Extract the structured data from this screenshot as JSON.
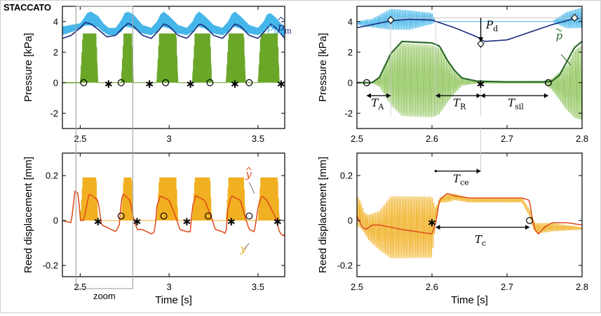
{
  "figure": {
    "heading": "STACCATO",
    "zoom_label": "zoom"
  },
  "colors": {
    "pressure_mouthpiece": "#45b6ea",
    "pressure_mean": "#1a2a7a",
    "pressure_reed": "#6aa729",
    "pressure_reed_smooth": "#2a6a2a",
    "reed_disp": "#f0b021",
    "reed_disp_smooth": "#e04a18",
    "zoom_box": "#a8a8a8",
    "annotation": "#777777"
  },
  "chart_data": [
    {
      "id": "left-top",
      "type": "line",
      "ylabel": "Pressure [kPa]",
      "xlim": [
        2.4,
        3.65
      ],
      "ylim": [
        -3,
        5
      ],
      "xticks": [
        "2.5",
        "3",
        "3.5"
      ],
      "xtick_values": [
        2.5,
        3.0,
        3.5
      ],
      "yticks": [
        "4",
        "2",
        "0",
        "-2"
      ],
      "ytick_values": [
        4,
        2,
        0,
        -2
      ],
      "series": [
        {
          "name": "p_m",
          "label_main": "p",
          "label_sub": "m",
          "kind": "oscillating",
          "envelope_t": [
            2.4,
            2.5,
            2.52,
            2.54,
            2.56,
            2.6,
            2.63,
            2.66,
            2.7,
            2.73,
            2.75,
            2.77,
            2.8,
            2.85,
            2.9,
            2.93,
            2.95,
            2.97,
            3.0,
            3.05,
            3.1,
            3.13,
            3.15,
            3.17,
            3.2,
            3.25,
            3.3,
            3.33,
            3.35,
            3.37,
            3.4,
            3.45,
            3.5,
            3.53,
            3.55,
            3.57,
            3.6,
            3.65
          ],
          "envelope_upper": [
            3.7,
            3.9,
            4.2,
            4.6,
            4.7,
            4.4,
            3.9,
            3.6,
            3.6,
            4.1,
            4.6,
            4.7,
            4.5,
            3.8,
            3.6,
            4.0,
            4.5,
            4.7,
            4.4,
            3.8,
            3.6,
            4.0,
            4.5,
            4.7,
            4.4,
            3.8,
            3.6,
            4.0,
            4.5,
            4.7,
            4.4,
            3.8,
            3.6,
            4.0,
            4.5,
            4.6,
            4.3,
            3.6
          ],
          "envelope_lower": [
            3.1,
            3.5,
            3.7,
            3.7,
            3.7,
            3.6,
            3.3,
            3.1,
            3.1,
            3.3,
            3.6,
            3.6,
            3.5,
            3.2,
            3.1,
            3.3,
            3.6,
            3.6,
            3.5,
            3.2,
            3.1,
            3.3,
            3.6,
            3.6,
            3.5,
            3.2,
            3.1,
            3.3,
            3.6,
            3.6,
            3.5,
            3.2,
            3.1,
            3.3,
            3.6,
            3.6,
            3.4,
            3.0
          ]
        },
        {
          "name": "p_m_hat",
          "label_main": "p",
          "label_sub": "m",
          "kind": "smooth",
          "t": [
            2.4,
            2.45,
            2.5,
            2.53,
            2.56,
            2.6,
            2.65,
            2.7,
            2.74,
            2.77,
            2.8,
            2.85,
            2.9,
            2.94,
            2.97,
            3.0,
            3.05,
            3.1,
            3.14,
            3.17,
            3.2,
            3.25,
            3.3,
            3.34,
            3.37,
            3.4,
            3.45,
            3.5,
            3.54,
            3.57,
            3.6,
            3.65
          ],
          "values": [
            2.9,
            3.1,
            3.6,
            3.95,
            3.85,
            3.5,
            3.0,
            3.1,
            3.6,
            3.9,
            3.7,
            3.1,
            2.9,
            3.4,
            3.85,
            3.7,
            3.1,
            2.9,
            3.4,
            3.85,
            3.7,
            3.1,
            2.9,
            3.4,
            3.85,
            3.7,
            3.1,
            2.9,
            3.4,
            3.85,
            3.6,
            2.9
          ]
        },
        {
          "name": "p",
          "label_main": "p",
          "label_sub": "",
          "kind": "oscillating",
          "bursts": [
            [
              2.5,
              2.6
            ],
            [
              2.73,
              2.8
            ],
            [
              2.93,
              3.05
            ],
            [
              3.13,
              3.24
            ],
            [
              3.32,
              3.43
            ],
            [
              3.5,
              3.62
            ]
          ],
          "amplitude_upper": 3.7,
          "amplitude_lower": -2.9
        },
        {
          "name": "p_mouthpiece_baseline",
          "kind": "smooth",
          "t": [
            2.4,
            2.5
          ],
          "values": [
            0,
            0
          ]
        }
      ],
      "markers": {
        "circles_t": [
          2.52,
          2.73,
          2.98,
          3.23,
          3.45
        ],
        "stars_t": [
          2.66,
          2.89,
          3.12,
          3.37,
          3.63
        ]
      },
      "annotations": [
        {
          "text_main": "p",
          "text_sub": "m"
        },
        {
          "text_main": "p",
          "text_sub": "m"
        },
        {
          "text_main": "p",
          "text_sub": ""
        }
      ]
    },
    {
      "id": "left-bottom",
      "type": "line",
      "xlabel": "Time [s]",
      "ylabel": "Reed displacement [mm]",
      "xlim": [
        2.4,
        3.65
      ],
      "ylim": [
        -0.25,
        0.3
      ],
      "xticks": [
        "2.5",
        "3",
        "3.5"
      ],
      "xtick_values": [
        2.5,
        3.0,
        3.5
      ],
      "yticks": [
        "0.2",
        "0",
        "-0.2"
      ],
      "ytick_values": [
        0.2,
        0,
        -0.2
      ],
      "series": [
        {
          "name": "y",
          "label_main": "y",
          "label_sub": "",
          "kind": "oscillating",
          "bursts": [
            [
              2.5,
              2.6
            ],
            [
              2.73,
              2.8
            ],
            [
              2.93,
              3.05
            ],
            [
              3.13,
              3.24
            ],
            [
              3.32,
              3.43
            ],
            [
              3.5,
              3.62
            ]
          ],
          "amplitude_upper": 0.14,
          "amplitude_lower": -0.22
        },
        {
          "name": "y_hat",
          "label_main": "y",
          "label_sub": "",
          "kind": "smooth",
          "t": [
            2.4,
            2.45,
            2.47,
            2.49,
            2.5,
            2.52,
            2.55,
            2.6,
            2.62,
            2.65,
            2.7,
            2.72,
            2.73,
            2.74,
            2.78,
            2.8,
            2.82,
            2.85,
            2.9,
            2.92,
            2.93,
            2.95,
            3.0,
            3.04,
            3.06,
            3.1,
            3.12,
            3.13,
            3.15,
            3.2,
            3.24,
            3.26,
            3.3,
            3.32,
            3.33,
            3.35,
            3.4,
            3.43,
            3.45,
            3.48,
            3.5,
            3.52,
            3.55,
            3.6,
            3.62,
            3.64,
            3.65
          ],
          "values": [
            0.0,
            -0.01,
            0.13,
            0.12,
            0.0,
            0.0,
            0.12,
            0.09,
            -0.02,
            -0.03,
            -0.05,
            -0.02,
            0.08,
            0.12,
            0.09,
            0.01,
            -0.04,
            -0.04,
            -0.06,
            -0.05,
            0.06,
            0.11,
            0.09,
            0.01,
            -0.04,
            -0.05,
            -0.05,
            0.06,
            0.11,
            0.09,
            0.01,
            -0.04,
            -0.05,
            -0.06,
            0.05,
            0.11,
            0.09,
            0.01,
            -0.04,
            -0.05,
            0.06,
            0.11,
            0.09,
            0.01,
            -0.05,
            -0.07,
            -0.06
          ]
        }
      ],
      "markers": {
        "circles_t": [
          2.73,
          2.97,
          3.22,
          3.45
        ],
        "stars_t": [
          2.6,
          2.82,
          3.1,
          3.35,
          3.61
        ]
      },
      "annotations": [
        {
          "text_main": "y",
          "text_sub": ""
        },
        {
          "text_main": "y",
          "text_sub": ""
        }
      ]
    },
    {
      "id": "right-top",
      "type": "line",
      "ylabel": "Pressure [kPa]",
      "xlim": [
        2.5,
        2.8
      ],
      "ylim": [
        -3,
        5
      ],
      "xticks": [
        "2.5",
        "2.6",
        "2.7",
        "2.8"
      ],
      "xtick_values": [
        2.5,
        2.6,
        2.7,
        2.8
      ],
      "yticks": [
        "4",
        "2",
        "0",
        "-2"
      ],
      "ytick_values": [
        4,
        2,
        0,
        -2
      ],
      "series": [
        {
          "name": "p_m",
          "kind": "oscillating",
          "envelope_t": [
            2.5,
            2.52,
            2.545,
            2.57,
            2.6,
            2.605,
            2.76,
            2.78,
            2.8
          ],
          "envelope_upper": [
            4.0,
            4.2,
            4.9,
            4.8,
            4.6,
            4.0,
            4.0,
            4.7,
            5.0
          ],
          "envelope_lower": [
            3.8,
            3.6,
            3.4,
            3.4,
            3.8,
            4.0,
            4.0,
            3.5,
            3.5
          ]
        },
        {
          "name": "p_m_hat",
          "kind": "smooth",
          "t": [
            2.5,
            2.52,
            2.545,
            2.57,
            2.6,
            2.63,
            2.66,
            2.67,
            2.7,
            2.73,
            2.76,
            2.79,
            2.8
          ],
          "values": [
            3.6,
            3.8,
            4.05,
            4.15,
            4.1,
            3.6,
            3.0,
            2.7,
            2.8,
            3.3,
            3.8,
            4.2,
            4.25
          ]
        },
        {
          "name": "p",
          "kind": "oscillating",
          "envelope_t": [
            2.5,
            2.51,
            2.52,
            2.53,
            2.545,
            2.56,
            2.6,
            2.61,
            2.62,
            2.63,
            2.64,
            2.66,
            2.7,
            2.75,
            2.76,
            2.78,
            2.79,
            2.8
          ],
          "envelope_upper": [
            0.0,
            0.0,
            0.0,
            0.4,
            2.0,
            2.8,
            2.7,
            2.5,
            1.6,
            0.8,
            0.3,
            0.1,
            0.1,
            0.1,
            0.3,
            1.3,
            2.4,
            2.8
          ],
          "envelope_lower": [
            0.0,
            0.0,
            0.0,
            -0.3,
            -1.6,
            -2.4,
            -2.5,
            -2.3,
            -1.5,
            -0.8,
            -0.2,
            -0.05,
            -0.05,
            -0.05,
            -0.5,
            -2.0,
            -2.6,
            -2.8
          ]
        },
        {
          "name": "p_tilde",
          "label_main": "p",
          "label_sub": "",
          "kind": "smooth",
          "t": [
            2.5,
            2.51,
            2.52,
            2.53,
            2.545,
            2.56,
            2.6,
            2.61,
            2.62,
            2.63,
            2.64,
            2.66,
            2.7,
            2.75,
            2.76,
            2.77,
            2.78,
            2.79,
            2.8
          ],
          "values": [
            0.0,
            0.0,
            0.0,
            0.35,
            1.9,
            2.7,
            2.6,
            2.4,
            1.5,
            0.8,
            0.3,
            0.1,
            0.05,
            0.05,
            0.1,
            0.5,
            1.4,
            2.3,
            2.7
          ]
        }
      ],
      "markers": {
        "circles_t": [
          2.513,
          2.755
        ],
        "stars_t": [
          2.665
        ],
        "diamonds": [
          [
            2.545,
            4.1
          ],
          [
            2.665,
            2.55
          ],
          [
            2.79,
            4.25
          ]
        ]
      },
      "annotations": [
        {
          "text_main": "P",
          "text_sub": "d"
        },
        {
          "text_main": "p",
          "text_sub": ""
        },
        {
          "text_main": "T",
          "text_sub": "A"
        },
        {
          "text_main": "T",
          "text_sub": "R"
        },
        {
          "text_main": "T",
          "text_sub": "sil"
        }
      ]
    },
    {
      "id": "right-bottom",
      "type": "line",
      "xlabel": "Time [s]",
      "ylabel": "Reed displacement [mm]",
      "xlim": [
        2.5,
        2.8
      ],
      "ylim": [
        -0.25,
        0.3
      ],
      "xticks": [
        "2.5",
        "2.6",
        "2.7",
        "2.8"
      ],
      "xtick_values": [
        2.5,
        2.6,
        2.7,
        2.8
      ],
      "yticks": [
        "0.2",
        "0",
        "-0.2"
      ],
      "ytick_values": [
        0.2,
        0,
        -0.2
      ],
      "series": [
        {
          "name": "y",
          "kind": "oscillating",
          "envelope_t": [
            2.5,
            2.505,
            2.51,
            2.515,
            2.53,
            2.545,
            2.6,
            2.605,
            2.61,
            2.62,
            2.63,
            2.65,
            2.7,
            2.72,
            2.73,
            2.735,
            2.74,
            2.76,
            2.8
          ],
          "envelope_upper": [
            0.12,
            0.09,
            0.04,
            0.03,
            0.05,
            0.12,
            0.12,
            0.06,
            0.1,
            0.12,
            0.12,
            0.1,
            0.1,
            0.1,
            0.05,
            0.0,
            -0.01,
            -0.01,
            -0.03
          ],
          "envelope_lower": [
            -0.03,
            -0.04,
            -0.06,
            -0.09,
            -0.14,
            -0.18,
            -0.18,
            -0.02,
            0.08,
            0.08,
            0.09,
            0.08,
            0.08,
            0.08,
            0.02,
            -0.04,
            -0.06,
            -0.05,
            -0.04
          ]
        },
        {
          "name": "y_hat",
          "kind": "smooth",
          "t": [
            2.5,
            2.503,
            2.507,
            2.512,
            2.52,
            2.53,
            2.545,
            2.56,
            2.58,
            2.6,
            2.605,
            2.61,
            2.62,
            2.63,
            2.65,
            2.7,
            2.72,
            2.73,
            2.733,
            2.737,
            2.742,
            2.75,
            2.76,
            2.78,
            2.8
          ],
          "values": [
            0.02,
            0.0,
            -0.03,
            -0.04,
            -0.02,
            -0.02,
            -0.03,
            -0.04,
            -0.05,
            -0.06,
            -0.01,
            0.09,
            0.12,
            0.11,
            0.1,
            0.1,
            0.1,
            0.09,
            0.02,
            -0.04,
            -0.06,
            -0.03,
            -0.01,
            -0.01,
            -0.02
          ]
        }
      ],
      "markers": {
        "circles_t": [
          2.73
        ],
        "stars_t": [
          2.6
        ]
      },
      "annotations": [
        {
          "text_main": "T",
          "text_sub": "ce"
        },
        {
          "text_main": "T",
          "text_sub": "c"
        }
      ]
    }
  ]
}
